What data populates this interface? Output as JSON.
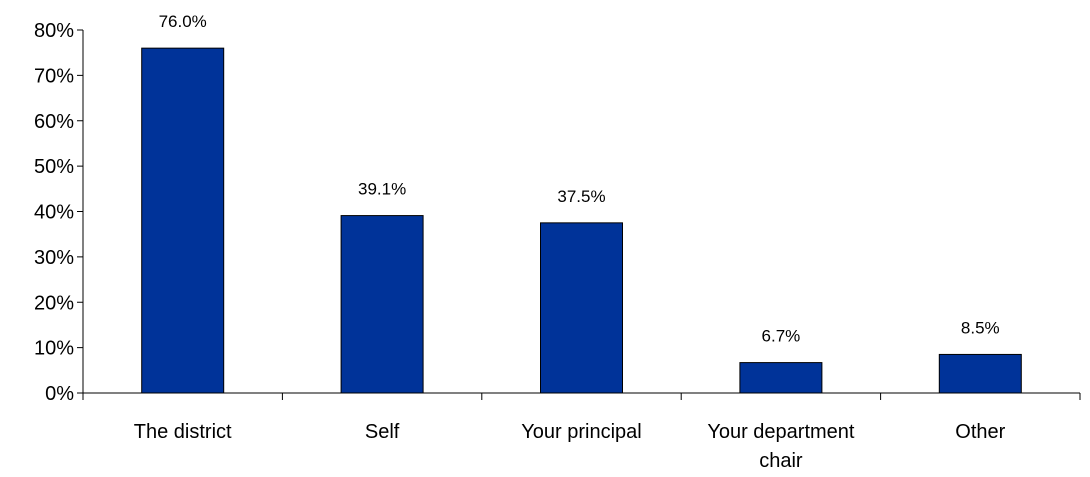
{
  "chart_data": {
    "type": "bar",
    "title": "",
    "xlabel": "",
    "ylabel": "",
    "categories": [
      "The district",
      "Self",
      "Your principal",
      "Your department chair",
      "Other"
    ],
    "category_lines": [
      [
        "The district"
      ],
      [
        "Self"
      ],
      [
        "Your principal"
      ],
      [
        "Your department",
        "chair"
      ],
      [
        "Other"
      ]
    ],
    "values": [
      76.0,
      39.1,
      37.5,
      6.7,
      8.5
    ],
    "data_labels": [
      "76.0%",
      "39.1%",
      "37.5%",
      "6.7%",
      "8.5%"
    ],
    "ylim": [
      0,
      80
    ],
    "yticks": [
      0,
      10,
      20,
      30,
      40,
      50,
      60,
      70,
      80
    ],
    "ytick_labels": [
      "0%",
      "10%",
      "20%",
      "30%",
      "40%",
      "50%",
      "60%",
      "70%",
      "80%"
    ],
    "grid": false,
    "legend": "none",
    "bar_color": "#003399"
  }
}
